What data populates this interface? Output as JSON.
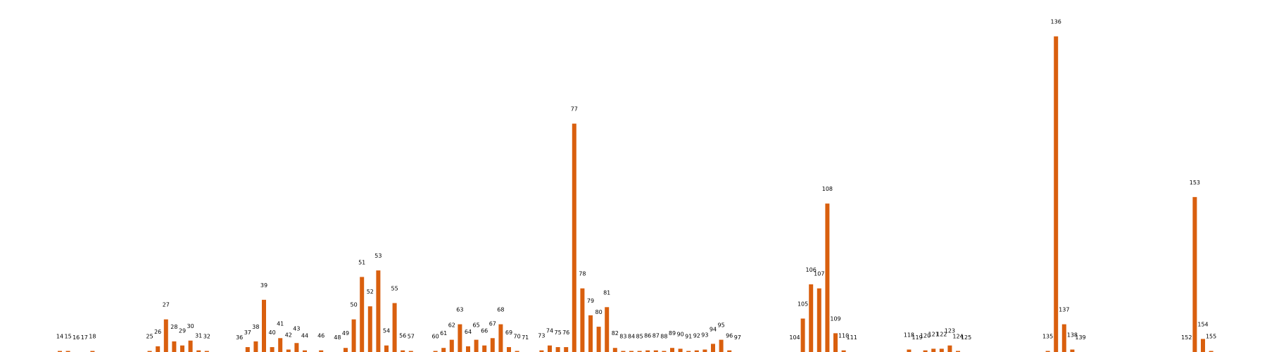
{
  "chart_data": {
    "type": "bar",
    "title": "",
    "xlabel": "",
    "ylabel": "",
    "grid": false,
    "axes_visible": false,
    "ylim": [
      0,
      410
    ],
    "bar_color": "#d95f0e",
    "bars": [
      {
        "x": 14,
        "value": 1
      },
      {
        "x": 15,
        "value": 1
      },
      {
        "x": 16,
        "value": 0
      },
      {
        "x": 17,
        "value": 0
      },
      {
        "x": 18,
        "value": 1
      },
      {
        "x": 25,
        "value": 1
      },
      {
        "x": 26,
        "value": 7
      },
      {
        "x": 27,
        "value": 40
      },
      {
        "x": 28,
        "value": 13
      },
      {
        "x": 29,
        "value": 8
      },
      {
        "x": 30,
        "value": 14
      },
      {
        "x": 31,
        "value": 2
      },
      {
        "x": 32,
        "value": 1
      },
      {
        "x": 36,
        "value": 0
      },
      {
        "x": 37,
        "value": 6
      },
      {
        "x": 38,
        "value": 13
      },
      {
        "x": 39,
        "value": 64
      },
      {
        "x": 40,
        "value": 6
      },
      {
        "x": 41,
        "value": 17
      },
      {
        "x": 42,
        "value": 3
      },
      {
        "x": 43,
        "value": 11
      },
      {
        "x": 44,
        "value": 2
      },
      {
        "x": 46,
        "value": 2
      },
      {
        "x": 48,
        "value": 0
      },
      {
        "x": 49,
        "value": 5
      },
      {
        "x": 50,
        "value": 40
      },
      {
        "x": 51,
        "value": 92
      },
      {
        "x": 52,
        "value": 56
      },
      {
        "x": 53,
        "value": 100
      },
      {
        "x": 54,
        "value": 8
      },
      {
        "x": 55,
        "value": 60
      },
      {
        "x": 56,
        "value": 2
      },
      {
        "x": 57,
        "value": 1
      },
      {
        "x": 60,
        "value": 1
      },
      {
        "x": 61,
        "value": 5
      },
      {
        "x": 62,
        "value": 15
      },
      {
        "x": 63,
        "value": 34
      },
      {
        "x": 64,
        "value": 7
      },
      {
        "x": 65,
        "value": 15
      },
      {
        "x": 66,
        "value": 8
      },
      {
        "x": 67,
        "value": 17
      },
      {
        "x": 68,
        "value": 34
      },
      {
        "x": 69,
        "value": 6
      },
      {
        "x": 70,
        "value": 1
      },
      {
        "x": 71,
        "value": 0
      },
      {
        "x": 73,
        "value": 2
      },
      {
        "x": 74,
        "value": 8
      },
      {
        "x": 75,
        "value": 6
      },
      {
        "x": 76,
        "value": 6
      },
      {
        "x": 77,
        "value": 280
      },
      {
        "x": 78,
        "value": 78
      },
      {
        "x": 79,
        "value": 45
      },
      {
        "x": 80,
        "value": 31
      },
      {
        "x": 81,
        "value": 55
      },
      {
        "x": 82,
        "value": 5
      },
      {
        "x": 83,
        "value": 1
      },
      {
        "x": 84,
        "value": 1
      },
      {
        "x": 85,
        "value": 1
      },
      {
        "x": 86,
        "value": 2
      },
      {
        "x": 87,
        "value": 2
      },
      {
        "x": 88,
        "value": 1
      },
      {
        "x": 89,
        "value": 5
      },
      {
        "x": 90,
        "value": 4
      },
      {
        "x": 91,
        "value": 1
      },
      {
        "x": 92,
        "value": 2
      },
      {
        "x": 93,
        "value": 3
      },
      {
        "x": 94,
        "value": 10
      },
      {
        "x": 95,
        "value": 15
      },
      {
        "x": 96,
        "value": 2
      },
      {
        "x": 97,
        "value": 0
      },
      {
        "x": 104,
        "value": 0
      },
      {
        "x": 105,
        "value": 41
      },
      {
        "x": 106,
        "value": 83
      },
      {
        "x": 107,
        "value": 78
      },
      {
        "x": 108,
        "value": 182
      },
      {
        "x": 109,
        "value": 23
      },
      {
        "x": 110,
        "value": 2
      },
      {
        "x": 111,
        "value": 0
      },
      {
        "x": 118,
        "value": 3
      },
      {
        "x": 119,
        "value": 0
      },
      {
        "x": 120,
        "value": 2
      },
      {
        "x": 121,
        "value": 4
      },
      {
        "x": 122,
        "value": 4
      },
      {
        "x": 123,
        "value": 8
      },
      {
        "x": 124,
        "value": 1
      },
      {
        "x": 125,
        "value": 0
      },
      {
        "x": 135,
        "value": 1
      },
      {
        "x": 136,
        "value": 387
      },
      {
        "x": 137,
        "value": 34
      },
      {
        "x": 138,
        "value": 3
      },
      {
        "x": 139,
        "value": 0
      },
      {
        "x": 152,
        "value": 0
      },
      {
        "x": 153,
        "value": 190
      },
      {
        "x": 154,
        "value": 16
      },
      {
        "x": 155,
        "value": 1
      }
    ]
  }
}
